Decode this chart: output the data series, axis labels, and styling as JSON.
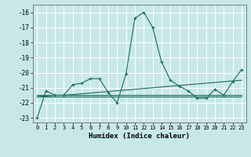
{
  "xlabel": "Humidex (Indice chaleur)",
  "bg_color": "#c8e8e8",
  "line_color": "#1a6b5a",
  "xlim": [
    -0.5,
    23.5
  ],
  "ylim": [
    -23.3,
    -15.5
  ],
  "yticks": [
    -23,
    -22,
    -21,
    -20,
    -19,
    -18,
    -17,
    -16
  ],
  "xticks": [
    0,
    1,
    2,
    3,
    4,
    5,
    6,
    7,
    8,
    9,
    10,
    11,
    12,
    13,
    14,
    15,
    16,
    17,
    18,
    19,
    20,
    21,
    22,
    23
  ],
  "y_spike": [
    -23.0,
    -21.2,
    -21.5,
    -21.5,
    -20.8,
    -20.7,
    -20.4,
    -20.4,
    -21.3,
    -22.0,
    -20.1,
    -16.4,
    -16.0,
    -17.0,
    -19.3,
    -20.5,
    -20.9,
    -21.2,
    -21.7,
    -21.7,
    -21.1,
    -21.5,
    -20.6,
    -19.8
  ],
  "y_trend": [
    -21.6,
    -21.55,
    -21.5,
    -21.5,
    -21.45,
    -21.4,
    -21.35,
    -21.3,
    -21.25,
    -21.2,
    -21.15,
    -21.1,
    -21.05,
    -21.0,
    -20.95,
    -20.9,
    -20.85,
    -20.8,
    -20.75,
    -20.7,
    -20.65,
    -20.6,
    -20.55,
    -20.5
  ],
  "y_flat1": [
    -21.5,
    -21.5,
    -21.5,
    -21.5,
    -21.5,
    -21.5,
    -21.5,
    -21.5,
    -21.5,
    -21.5,
    -21.5,
    -21.5,
    -21.5,
    -21.5,
    -21.5,
    -21.5,
    -21.5,
    -21.5,
    -21.5,
    -21.5,
    -21.5,
    -21.5,
    -21.5,
    -21.5
  ],
  "y_flat2": [
    -21.6,
    -21.6,
    -21.6,
    -21.6,
    -21.6,
    -21.6,
    -21.6,
    -21.6,
    -21.6,
    -21.6,
    -21.6,
    -21.6,
    -21.6,
    -21.6,
    -21.6,
    -21.6,
    -21.6,
    -21.6,
    -21.6,
    -21.6,
    -21.6,
    -21.6,
    -21.6,
    -21.6
  ]
}
